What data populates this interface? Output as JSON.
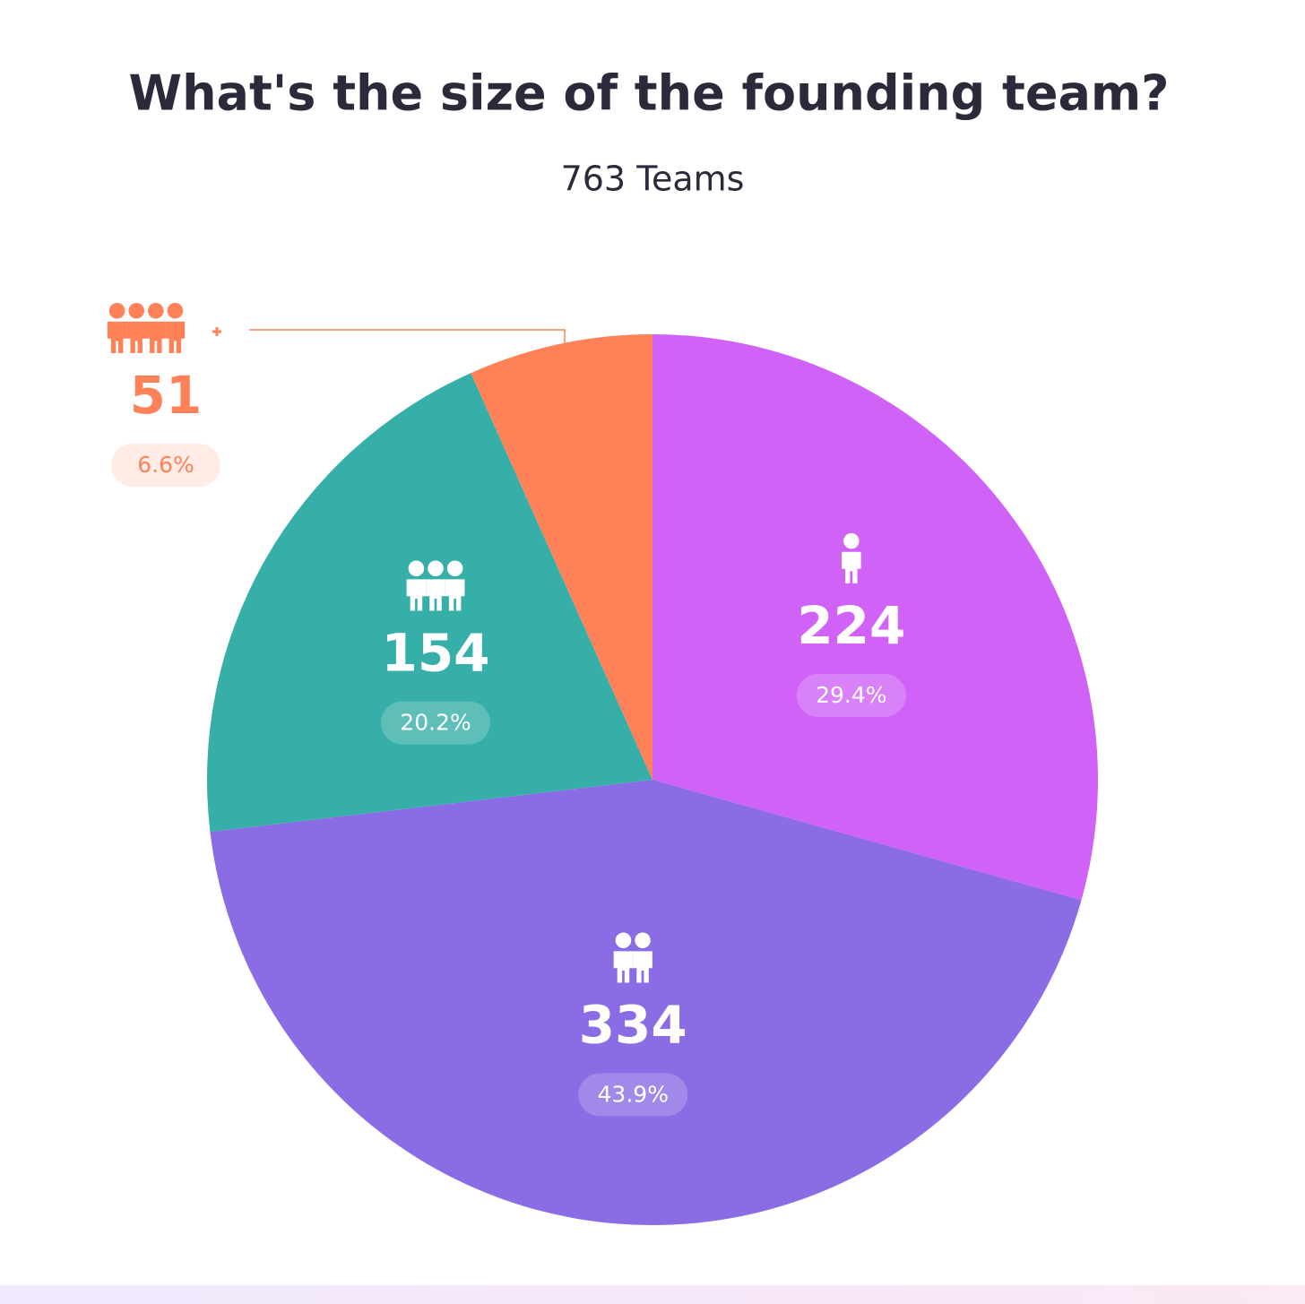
{
  "chart_data": {
    "type": "pie",
    "title": "What's the size of the founding team?",
    "subtitle": "763 Teams",
    "values": [
      224,
      334,
      154,
      51
    ],
    "percent_labels": [
      "29.4%",
      "43.9%",
      "20.2%",
      "6.6%"
    ],
    "colors": [
      "#d062f7",
      "#8a6ce5",
      "#36afa8",
      "#ff8157"
    ]
  }
}
